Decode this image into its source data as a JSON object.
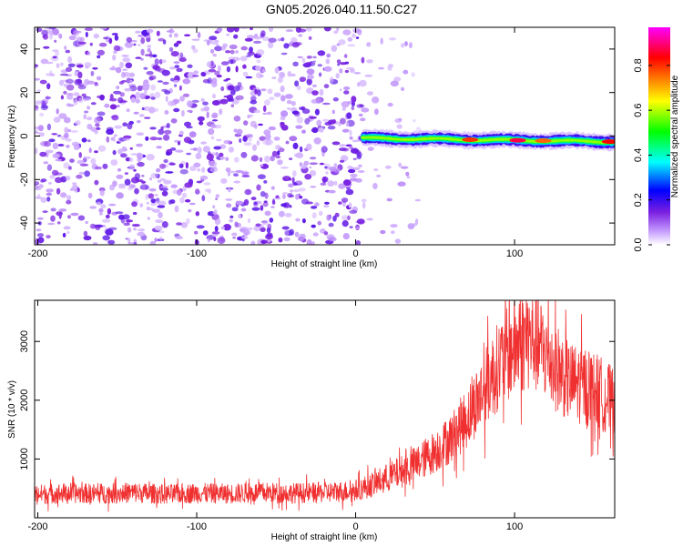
{
  "title": "GN05.2026.040.11.50.C27",
  "chart_data": [
    {
      "type": "heatmap",
      "title": "GN05.2026.040.11.50.C27",
      "xlabel": "Height of straight line (km)",
      "ylabel": "Frequency (Hz)",
      "xlim": [
        -202,
        163
      ],
      "ylim": [
        -50,
        50
      ],
      "xticks": [
        -200,
        -100,
        0,
        100
      ],
      "yticks": [
        -40,
        -20,
        0,
        20,
        40
      ],
      "colorbar": {
        "label": "Normalized spectral amplitude",
        "range": [
          0,
          0.97
        ],
        "ticks": [
          0.0,
          0.2,
          0.4,
          0.6,
          0.8
        ],
        "colors": [
          "#ffffff",
          "#c8a0ff",
          "#7a1fe0",
          "#0000ff",
          "#00ffff",
          "#00ff00",
          "#ffff00",
          "#ff8000",
          "#ff0000",
          "#ff00ff"
        ]
      },
      "features": {
        "noise_region_x": [
          -202,
          5
        ],
        "signal_band_x": [
          5,
          163
        ],
        "signal_band_freq_hz": [
          -3,
          1
        ],
        "signal_amplitude_max": 0.9
      }
    },
    {
      "type": "line",
      "xlabel": "Height of straight line (km)",
      "ylabel": "SNR (10 * v/v)",
      "xlim": [
        -202,
        163
      ],
      "ylim": [
        0,
        3700
      ],
      "xticks": [
        -200,
        -100,
        0,
        100
      ],
      "yticks": [
        1000,
        2000,
        3000
      ],
      "series": [
        {
          "name": "SNR",
          "color": "#f03030",
          "x": [
            -202,
            -180,
            -160,
            -140,
            -120,
            -100,
            -80,
            -60,
            -40,
            -20,
            0,
            10,
            20,
            30,
            40,
            50,
            60,
            70,
            80,
            90,
            100,
            108,
            115,
            125,
            135,
            145,
            155,
            163
          ],
          "y": [
            400,
            420,
            410,
            430,
            400,
            420,
            410,
            430,
            420,
            430,
            460,
            560,
            680,
            800,
            950,
            1130,
            1350,
            1700,
            2150,
            2600,
            2900,
            3050,
            2950,
            2600,
            2300,
            2250,
            2100,
            1950
          ]
        }
      ]
    }
  ]
}
